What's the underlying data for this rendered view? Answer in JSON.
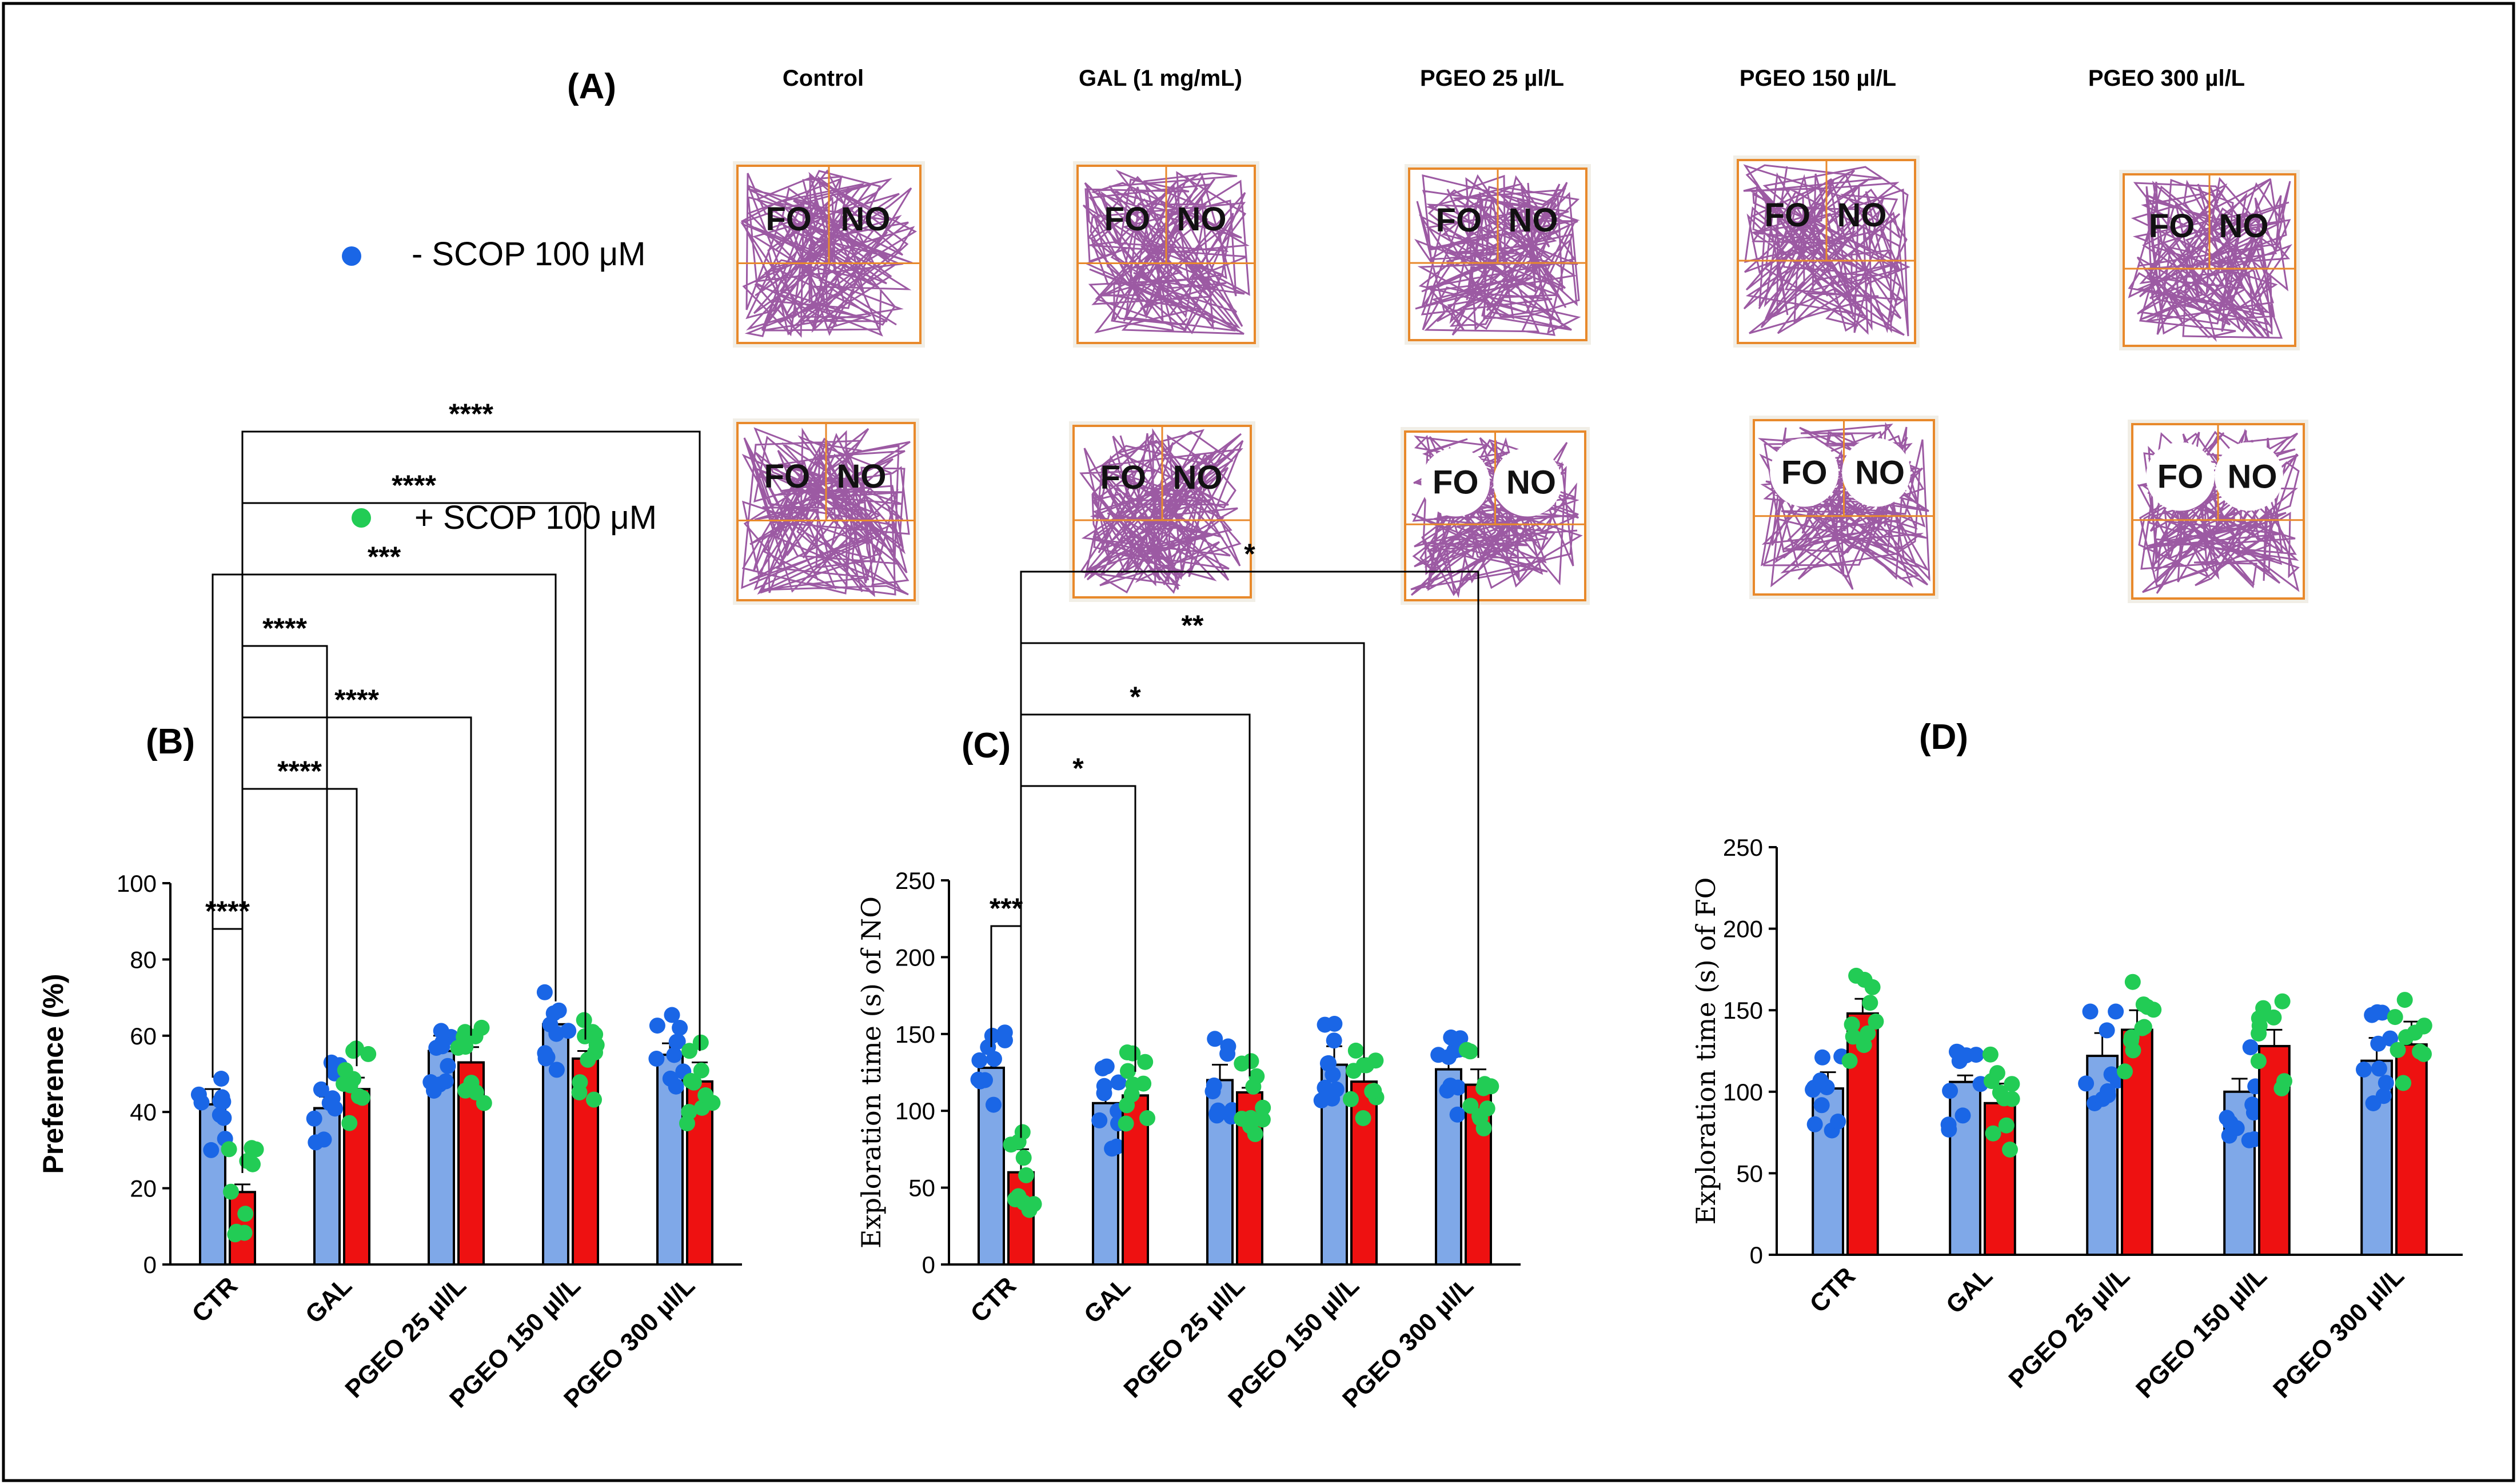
{
  "figure": {
    "panel_labels": {
      "a": "(A)",
      "b": "(B)",
      "c": "(C)",
      "d": "(D)"
    },
    "legend": {
      "minus_scop": "- SCOP 100 μM",
      "plus_scop": "+ SCOP 100 μM",
      "minus_color": "#1a66e6",
      "plus_color": "#22cc55"
    },
    "track_columns": [
      "Control",
      "GAL (1 mg/mL)",
      "PGEO 25 µl/L",
      "PGEO 150 µl/L",
      "PGEO 300 µl/L"
    ],
    "track_labels": {
      "fo": "FO",
      "no": "NO"
    },
    "colors": {
      "bar_minus": "#7fa8e8",
      "bar_plus": "#ee1111",
      "track": "#8b3d93",
      "arena": "#e8892b"
    }
  },
  "chart_data": [
    {
      "type": "bar",
      "panel": "(B)",
      "ylabel": "Preference (%)",
      "ylim": [
        0,
        100
      ],
      "yticks": [
        "0",
        "20",
        "40",
        "60",
        "80",
        "100"
      ],
      "categories": [
        "CTR",
        "GAL",
        "PGEO 25 µl/L",
        "PGEO 150 µl/L",
        "PGEO 300 µl/L"
      ],
      "series": [
        {
          "name": "- SCOP 100 μM",
          "values": [
            42,
            41,
            56,
            63,
            55
          ],
          "errors": [
            4,
            3,
            4,
            3,
            3
          ]
        },
        {
          "name": "+ SCOP 100 μM",
          "values": [
            19,
            46,
            53,
            54,
            48
          ],
          "errors": [
            2,
            3,
            4,
            2,
            5
          ]
        }
      ],
      "significance": [
        {
          "label": "****",
          "from": [
            0,
            0
          ],
          "to": [
            0,
            1
          ]
        },
        {
          "label": "****",
          "from": [
            0,
            1
          ],
          "to": [
            1,
            1
          ]
        },
        {
          "label": "****",
          "from": [
            0,
            1
          ],
          "to": [
            2,
            1
          ]
        },
        {
          "label": "****",
          "from": [
            0,
            1
          ],
          "to": [
            1,
            0
          ]
        },
        {
          "label": "***",
          "from": [
            0,
            0
          ],
          "to": [
            3,
            0
          ]
        },
        {
          "label": "****",
          "from": [
            0,
            1
          ],
          "to": [
            3,
            1
          ]
        },
        {
          "label": "****",
          "from": [
            0,
            1
          ],
          "to": [
            4,
            1
          ]
        }
      ]
    },
    {
      "type": "bar",
      "panel": "(C)",
      "ylabel": "Exploration  time (s) of NO",
      "ylim": [
        0,
        250
      ],
      "yticks": [
        "0",
        "50",
        "100",
        "150",
        "200",
        "250"
      ],
      "categories": [
        "CTR",
        "GAL",
        "PGEO 25 µl/L",
        "PGEO 150 µl/L",
        "PGEO 300 µl/L"
      ],
      "series": [
        {
          "name": "- SCOP 100 μM",
          "values": [
            128,
            105,
            120,
            130,
            127
          ],
          "errors": [
            6,
            12,
            10,
            12,
            9
          ]
        },
        {
          "name": "+ SCOP 100 μM",
          "values": [
            60,
            110,
            112,
            119,
            117
          ],
          "errors": [
            15,
            8,
            3,
            8,
            10
          ]
        }
      ],
      "significance": [
        {
          "label": "***",
          "from": [
            0,
            0
          ],
          "to": [
            0,
            1
          ]
        },
        {
          "label": "*",
          "from": [
            0,
            1
          ],
          "to": [
            1,
            1
          ]
        },
        {
          "label": "*",
          "from": [
            0,
            1
          ],
          "to": [
            2,
            1
          ]
        },
        {
          "label": "**",
          "from": [
            0,
            1
          ],
          "to": [
            3,
            1
          ]
        },
        {
          "label": "*",
          "from": [
            0,
            1
          ],
          "to": [
            4,
            1
          ]
        }
      ]
    },
    {
      "type": "bar",
      "panel": "(D)",
      "ylabel": "Exploration  time (s) of FO",
      "ylim": [
        0,
        250
      ],
      "yticks": [
        "0",
        "50",
        "100",
        "150",
        "200",
        "250"
      ],
      "categories": [
        "CTR",
        "GAL",
        "PGEO 25 µl/L",
        "PGEO 150 µl/L",
        "PGEO 300 µl/L"
      ],
      "series": [
        {
          "name": "- SCOP 100 μM",
          "values": [
            102,
            106,
            122,
            100,
            119
          ],
          "errors": [
            10,
            4,
            14,
            8,
            14
          ]
        },
        {
          "name": "+ SCOP 100 μM",
          "values": [
            148,
            93,
            138,
            128,
            129
          ],
          "errors": [
            9,
            12,
            12,
            10,
            14
          ]
        }
      ],
      "significance": []
    }
  ]
}
